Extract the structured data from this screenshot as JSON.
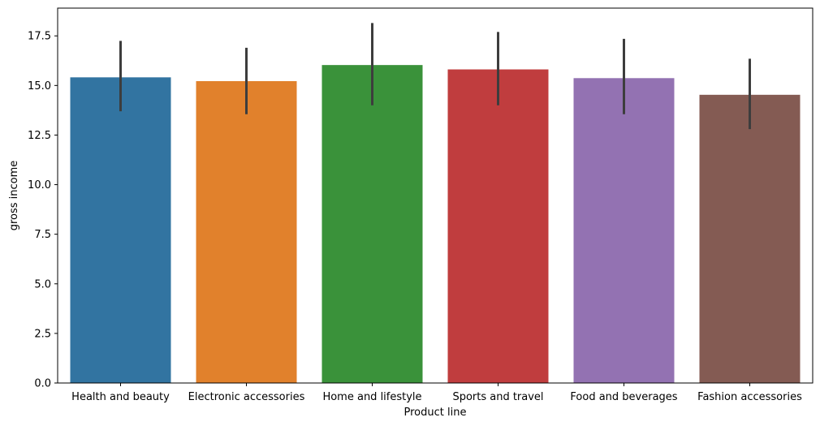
{
  "chart_data": {
    "type": "bar",
    "title": "",
    "xlabel": "Product line",
    "ylabel": "gross income",
    "ylim": [
      0,
      18.9
    ],
    "yticks": [
      0.0,
      2.5,
      5.0,
      7.5,
      10.0,
      12.5,
      15.0,
      17.5
    ],
    "ytick_labels": [
      "0.0",
      "2.5",
      "5.0",
      "7.5",
      "10.0",
      "12.5",
      "15.0",
      "17.5"
    ],
    "categories": [
      "Health and beauty",
      "Electronic accessories",
      "Home and lifestyle",
      "Sports and travel",
      "Food and beverages",
      "Fashion accessories"
    ],
    "values": [
      15.41,
      15.22,
      16.03,
      15.81,
      15.37,
      14.53
    ],
    "error_low": [
      13.7,
      13.55,
      14.0,
      14.0,
      13.55,
      12.8
    ],
    "error_high": [
      17.25,
      16.9,
      18.15,
      17.7,
      17.35,
      16.35
    ],
    "colors": [
      "#3274a1",
      "#e1812c",
      "#3a923a",
      "#c03d3e",
      "#9372b2",
      "#845b53"
    ],
    "error_color": "#3d3d3d",
    "grid": false
  }
}
